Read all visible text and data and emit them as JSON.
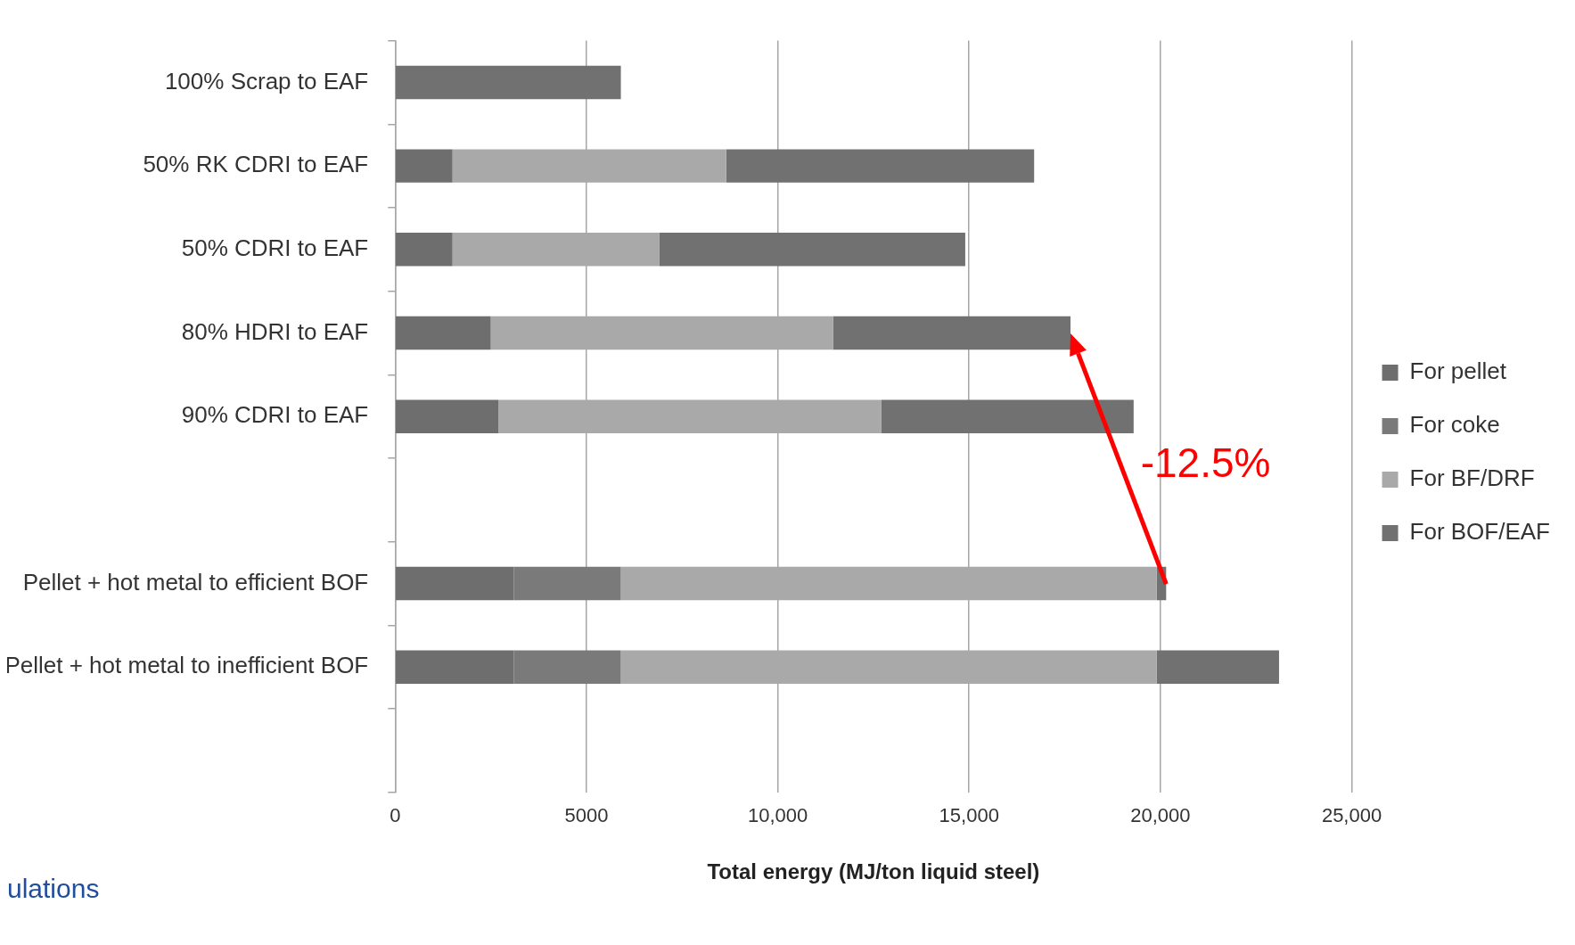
{
  "chart_data": {
    "type": "bar",
    "orientation": "horizontal",
    "stacked": true,
    "xlabel": "Total energy (MJ/ton liquid steel)",
    "categories": [
      "100% Scrap to EAF",
      "50% RK CDRI to EAF",
      "50% CDRI to EAF",
      "80% HDRI to EAF",
      "90% CDRI to EAF",
      null,
      "Pellet + hot metal to efficient BOF",
      "Pellet + hot metal to inefficient BOF",
      null
    ],
    "series": [
      {
        "name": "For pellet",
        "color": "#6e6e6e",
        "values": [
          null,
          1500,
          1500,
          2500,
          2700,
          null,
          3100,
          3100,
          null
        ]
      },
      {
        "name": "For coke",
        "color": "#7a7a7a",
        "values": [
          null,
          null,
          null,
          null,
          null,
          null,
          2800,
          2800,
          null
        ]
      },
      {
        "name": "For BF/DRF",
        "color": "#a9a9a9",
        "values": [
          null,
          7150,
          5400,
          8950,
          10000,
          null,
          14000,
          14000,
          null
        ]
      },
      {
        "name": "For BOF/EAF",
        "color": "#717171",
        "values": [
          5900,
          8050,
          8000,
          6200,
          6600,
          null,
          250,
          3200,
          null
        ]
      }
    ],
    "xlim": [
      0,
      25000
    ],
    "xticks": [
      0,
      5000,
      {
        "value": 10000,
        "label": "10,000"
      },
      {
        "value": 15000,
        "label": "15,000"
      },
      {
        "value": 20000,
        "label": "20,000"
      },
      {
        "value": 25000,
        "label": "25,000"
      }
    ],
    "grid": "x",
    "legend": "right",
    "annotations": [
      "-12.5%",
      "ulations"
    ]
  }
}
